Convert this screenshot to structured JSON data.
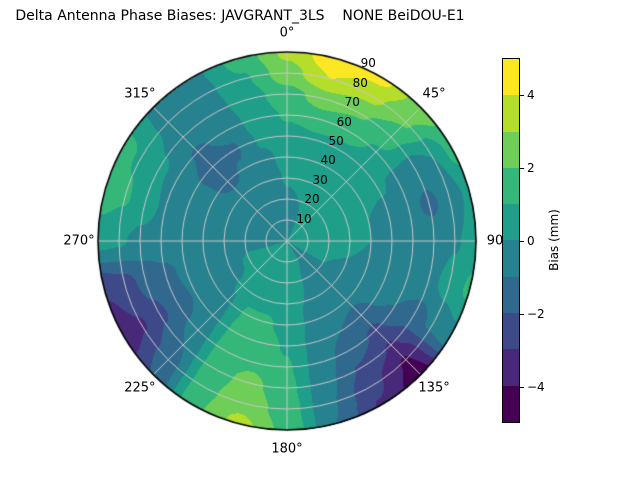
{
  "title": "Delta Antenna Phase Biases: JAVGRANT_3LS    NONE BeiDOU-E1",
  "polar": {
    "angular_labels": [
      {
        "label": "0°",
        "az": 0
      },
      {
        "label": "45°",
        "az": 45
      },
      {
        "label": "90",
        "az": 90
      },
      {
        "label": "135°",
        "az": 135
      },
      {
        "label": "180°",
        "az": 180
      },
      {
        "label": "225°",
        "az": 225
      },
      {
        "label": "270°",
        "az": 270
      },
      {
        "label": "315°",
        "az": 315
      }
    ],
    "radial_ticks": [
      {
        "label": "10",
        "zen": 10
      },
      {
        "label": "20",
        "zen": 20
      },
      {
        "label": "30",
        "zen": 30
      },
      {
        "label": "40",
        "zen": 40
      },
      {
        "label": "50",
        "zen": 50
      },
      {
        "label": "60",
        "zen": 60
      },
      {
        "label": "70",
        "zen": 70
      },
      {
        "label": "80",
        "zen": 80
      },
      {
        "label": "90",
        "zen": 90
      }
    ],
    "grid_color": "#c9c9c9",
    "outline_color": "#000000"
  },
  "colorbar": {
    "label": "Bias (mm)",
    "ticks": [
      {
        "label": "4",
        "value": 4
      },
      {
        "label": "2",
        "value": 2
      },
      {
        "label": "0",
        "value": 0
      },
      {
        "label": "−2",
        "value": -2
      },
      {
        "label": "−4",
        "value": -4
      }
    ],
    "range": [
      -5,
      5
    ]
  },
  "chart_data": {
    "type": "heatmap",
    "projection": "polar",
    "title": "Delta Antenna Phase Biases: JAVGRANT_3LS    NONE BeiDOU-E1",
    "value_label": "Bias (mm)",
    "value_range": [
      -5,
      5
    ],
    "band_step_mm": 1,
    "palette_viridis10": [
      "#440154",
      "#482878",
      "#3e4989",
      "#31688e",
      "#26828e",
      "#1f9e89",
      "#35b779",
      "#6ece58",
      "#b5de2b",
      "#fde725"
    ],
    "azimuth_deg": [
      0,
      15,
      30,
      45,
      60,
      75,
      90,
      105,
      120,
      135,
      150,
      165,
      180,
      195,
      210,
      225,
      240,
      255,
      270,
      285,
      300,
      315,
      330,
      345
    ],
    "zenith_deg": [
      0,
      10,
      20,
      30,
      40,
      50,
      60,
      70,
      80,
      90
    ],
    "values_mm": [
      [
        0.0,
        -0.2,
        -0.2,
        0.1,
        0.3,
        0.6,
        1.1,
        1.6,
        2.6,
        3.2
      ],
      [
        0.0,
        -0.1,
        0.0,
        0.2,
        0.4,
        0.8,
        1.5,
        2.5,
        4.0,
        4.8
      ],
      [
        0.0,
        0.1,
        0.15,
        0.3,
        0.5,
        0.8,
        1.3,
        2.1,
        3.3,
        4.3
      ],
      [
        0.0,
        0.15,
        0.15,
        0.3,
        0.4,
        0.6,
        0.9,
        1.4,
        2.1,
        2.5
      ],
      [
        0.0,
        0.15,
        0.15,
        0.2,
        0.2,
        0.1,
        -0.2,
        -0.5,
        0.0,
        1.4
      ],
      [
        0.0,
        0.1,
        0.1,
        0.1,
        0.0,
        -0.3,
        -0.7,
        -1.2,
        -0.6,
        0.3
      ],
      [
        0.0,
        0.1,
        0.1,
        0.1,
        0.0,
        -0.2,
        -0.4,
        -0.5,
        -0.1,
        0.5
      ],
      [
        0.0,
        0.05,
        0.05,
        0.0,
        -0.1,
        -0.3,
        -0.4,
        -0.3,
        0.4,
        1.2
      ],
      [
        0.0,
        0.0,
        0.0,
        -0.2,
        -0.4,
        -0.7,
        -1.0,
        -1.4,
        -0.8,
        -0.3
      ],
      [
        0.0,
        -0.05,
        -0.1,
        -0.4,
        -0.8,
        -1.4,
        -2.2,
        -3.1,
        -4.1,
        -4.6
      ],
      [
        0.0,
        0.0,
        -0.1,
        -0.3,
        -0.6,
        -1.0,
        -1.5,
        -2.1,
        -2.7,
        -3.1
      ],
      [
        0.0,
        0.1,
        0.05,
        0.0,
        -0.1,
        -0.3,
        -0.5,
        -0.7,
        -0.9,
        -1.0
      ],
      [
        0.0,
        0.25,
        0.35,
        0.5,
        0.7,
        0.9,
        1.1,
        1.3,
        1.5,
        1.7
      ],
      [
        0.0,
        0.35,
        0.5,
        0.8,
        1.1,
        1.4,
        1.8,
        2.3,
        2.7,
        3.3
      ],
      [
        0.0,
        0.4,
        0.6,
        0.8,
        1.1,
        1.3,
        1.5,
        1.6,
        1.7,
        1.8
      ],
      [
        0.0,
        0.3,
        0.3,
        0.1,
        -0.1,
        -0.3,
        -0.6,
        -1.0,
        -1.5,
        -1.9
      ],
      [
        0.0,
        0.15,
        0.1,
        -0.2,
        -0.5,
        -0.9,
        -1.5,
        -2.2,
        -3.1,
        -3.7
      ],
      [
        0.0,
        0.0,
        0.0,
        -0.2,
        -0.5,
        -0.8,
        -1.2,
        -1.7,
        -2.4,
        -2.9
      ],
      [
        0.0,
        -0.15,
        -0.2,
        -0.35,
        -0.5,
        -0.55,
        -0.45,
        -0.25,
        0.1,
        0.3
      ],
      [
        0.0,
        -0.3,
        -0.35,
        -0.55,
        -0.75,
        -0.6,
        -0.2,
        0.4,
        1.1,
        1.5
      ],
      [
        0.0,
        -0.35,
        -0.4,
        -0.6,
        -0.9,
        -0.9,
        -0.4,
        0.2,
        0.9,
        1.3
      ],
      [
        0.0,
        -0.35,
        -0.4,
        -0.7,
        -1.2,
        -1.4,
        -1.1,
        -0.6,
        -0.3,
        -0.2
      ],
      [
        0.0,
        -0.3,
        -0.4,
        -0.6,
        -0.9,
        -1.1,
        -0.8,
        -0.4,
        -0.3,
        -0.2
      ],
      [
        0.0,
        -0.25,
        -0.4,
        -0.35,
        -0.2,
        0.1,
        0.4,
        0.6,
        0.9,
        1.4
      ]
    ]
  }
}
